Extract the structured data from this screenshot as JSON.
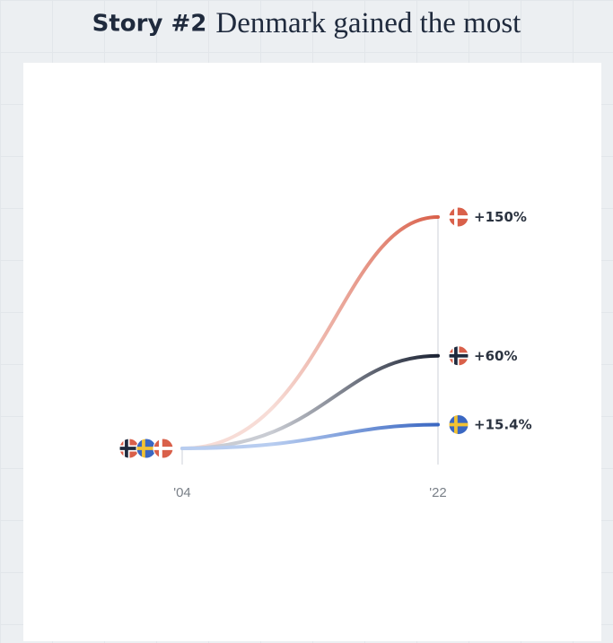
{
  "header": {
    "story_label": "Story #2",
    "headline": "Denmark gained the most"
  },
  "chart_data": {
    "type": "line",
    "x": [
      "'04",
      "'22"
    ],
    "xlabel": "",
    "ylabel": "",
    "ylim": [
      0,
      150
    ],
    "grid": false,
    "series": [
      {
        "flag": "denmark",
        "values": [
          0,
          150
        ],
        "end_label": "+150%",
        "color_start": "#f7dcd6",
        "color_end": "#d9604a"
      },
      {
        "flag": "norway",
        "values": [
          0,
          60
        ],
        "end_label": "+60%",
        "color_start": "#c9ccd3",
        "color_end": "#1b2233"
      },
      {
        "flag": "sweden",
        "values": [
          0,
          15.4
        ],
        "end_label": "+15.4%",
        "color_start": "#b8cdf0",
        "color_end": "#3a67c2"
      }
    ]
  },
  "flags": {
    "denmark": {
      "field": "#d9604a",
      "cross": "#ffffff",
      "icon": "denmark-flag-icon"
    },
    "norway": {
      "field": "#d9604a",
      "cross": "#1f2a3d",
      "outline": "#ffffff",
      "icon": "norway-flag-icon"
    },
    "sweden": {
      "field": "#3a67c2",
      "cross": "#f2c233",
      "icon": "sweden-flag-icon"
    }
  }
}
